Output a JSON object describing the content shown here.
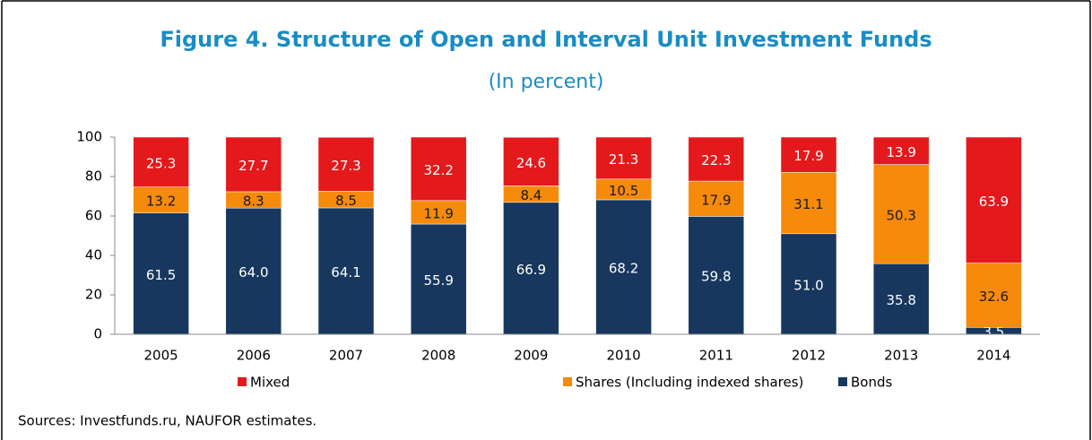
{
  "chart_data": {
    "type": "bar",
    "stacked": true,
    "title": "Figure 4. Structure of Open and Interval Unit Investment Funds",
    "subtitle": "(In percent)",
    "source": "Sources: Investfunds.ru, NAUFOR estimates.",
    "categories": [
      "2005",
      "2006",
      "2007",
      "2008",
      "2009",
      "2010",
      "2011",
      "2012",
      "2013",
      "2014"
    ],
    "series": [
      {
        "name": "Bonds",
        "color": "#17375e",
        "label_color": "#ffffff",
        "values": [
          61.5,
          64.0,
          64.1,
          55.9,
          66.9,
          68.2,
          59.8,
          51.0,
          35.8,
          3.5
        ],
        "value_labels": [
          "61.5",
          "64.0",
          "64.1",
          "55.9",
          "66.9",
          "68.2",
          "59.8",
          "51.0",
          "35.8",
          "3.5"
        ]
      },
      {
        "name": "Shares (Including indexed shares)",
        "color": "#f58a0b",
        "label_color": "#1a1a1a",
        "values": [
          13.2,
          8.3,
          8.5,
          11.9,
          8.4,
          10.5,
          17.9,
          31.1,
          50.3,
          32.6
        ],
        "value_labels": [
          "13.2",
          "8.3",
          "8.5",
          "11.9",
          "8.4",
          "10.5",
          "17.9",
          "31.1",
          "50.3",
          "32.6"
        ]
      },
      {
        "name": "Mixed",
        "color": "#e3191b",
        "label_color": "#ffffff",
        "values": [
          25.3,
          27.7,
          27.3,
          32.2,
          24.6,
          21.3,
          22.3,
          17.9,
          13.9,
          63.9
        ],
        "value_labels": [
          "25.3",
          "27.7",
          "27.3",
          "32.2",
          "24.6",
          "21.3",
          "22.3",
          "17.9",
          "13.9",
          "63.9"
        ]
      }
    ],
    "legend_order": [
      2,
      1,
      0
    ],
    "ylim": [
      0,
      100
    ],
    "yticks": [
      0,
      20,
      40,
      60,
      80,
      100
    ],
    "grid": false
  }
}
